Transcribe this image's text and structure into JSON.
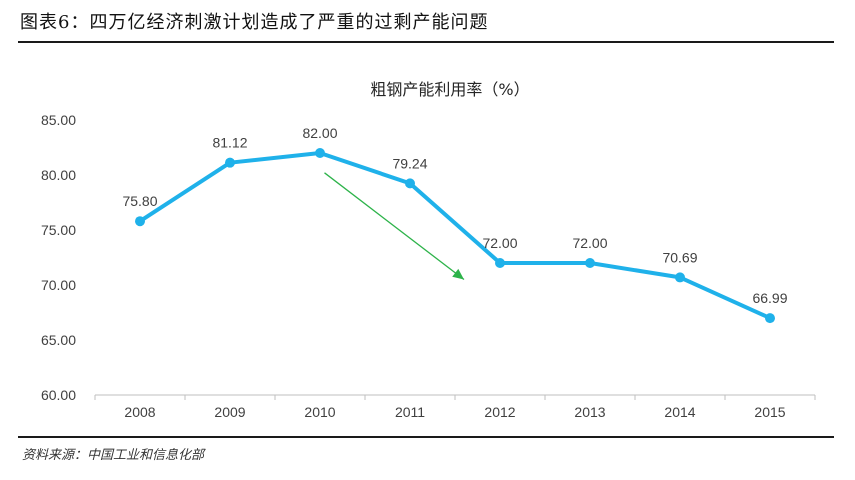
{
  "figure": {
    "title": "图表6：四万亿经济刺激计划造成了严重的过剩产能问题",
    "source": "资料来源：中国工业和信息化部"
  },
  "chart_data": {
    "type": "line",
    "title": "粗钢产能利用率（%）",
    "categories": [
      "2008",
      "2009",
      "2010",
      "2011",
      "2012",
      "2013",
      "2014",
      "2015"
    ],
    "values": [
      75.8,
      81.12,
      82.0,
      79.24,
      72.0,
      72.0,
      70.69,
      66.99
    ],
    "data_labels": [
      "75.80",
      "81.12",
      "82.00",
      "79.24",
      "72.00",
      "72.00",
      "70.69",
      "66.99"
    ],
    "ylim": [
      60,
      85
    ],
    "y_ticks": [
      "60.00",
      "65.00",
      "70.00",
      "75.00",
      "80.00",
      "85.00"
    ],
    "xlabel": "",
    "ylabel": "",
    "grid": false,
    "legend": "none",
    "annotation": {
      "type": "arrow",
      "from": {
        "x": 2010.05,
        "y": 80.2
      },
      "to": {
        "x": 2011.6,
        "y": 70.5
      }
    },
    "colors": {
      "line": "#1fb1ea",
      "arrow": "#2db34a",
      "axis": "#bfbfbf"
    }
  }
}
